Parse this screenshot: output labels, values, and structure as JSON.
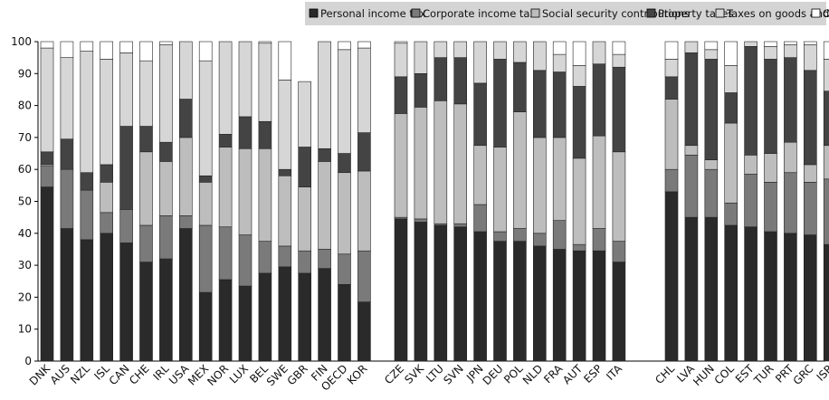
{
  "chart_data": {
    "type": "bar",
    "stacked": true,
    "ylim": [
      0,
      100
    ],
    "yticks": [
      0,
      10,
      20,
      30,
      40,
      50,
      60,
      70,
      80,
      90,
      100
    ],
    "grid": false,
    "legend_position": "top",
    "groups": [
      [
        "DNK",
        "AUS",
        "NZL",
        "ISL",
        "CAN",
        "CHE",
        "IRL",
        "USA",
        "MEX",
        "NOR",
        "LUX",
        "BEL",
        "SWE",
        "GBR",
        "FIN",
        "OECD",
        "KOR"
      ],
      [
        "CZE",
        "SVK",
        "LTU",
        "SVN",
        "JPN",
        "DEU",
        "POL",
        "NLD",
        "FRA",
        "AUT",
        "ESP",
        "ITA"
      ],
      [
        "CHL",
        "LVA",
        "HUN",
        "COL",
        "EST",
        "TUR",
        "PRT",
        "GRC",
        "ISR"
      ]
    ],
    "categories": [
      "DNK",
      "AUS",
      "NZL",
      "ISL",
      "CAN",
      "CHE",
      "IRL",
      "USA",
      "MEX",
      "NOR",
      "LUX",
      "BEL",
      "SWE",
      "GBR",
      "FIN",
      "OECD",
      "KOR",
      "CZE",
      "SVK",
      "LTU",
      "SVN",
      "JPN",
      "DEU",
      "POL",
      "NLD",
      "FRA",
      "AUT",
      "ESP",
      "ITA",
      "CHL",
      "LVA",
      "HUN",
      "COL",
      "EST",
      "TUR",
      "PRT",
      "GRC",
      "ISR"
    ],
    "series": [
      {
        "name": "Personal income tax",
        "color": "#2a2a2a",
        "values": [
          54.5,
          41.5,
          38,
          40,
          37,
          31,
          32,
          41.5,
          21.5,
          25.5,
          23.5,
          27.5,
          29.5,
          27.5,
          29,
          24,
          18.5,
          0,
          0,
          0,
          0,
          0,
          0,
          0,
          0,
          0,
          0,
          0,
          0,
          0,
          0,
          0,
          0,
          0,
          0,
          0,
          0,
          0
        ]
      },
      {
        "name": "Corporate income tax",
        "color": "#7a7a7a",
        "values": [
          6.5,
          18.5,
          15.5,
          6.5,
          10.5,
          11.5,
          13.5,
          4,
          21,
          16.5,
          16,
          10,
          6.5,
          7,
          6,
          9.5,
          16,
          0,
          0,
          0,
          0,
          0,
          0,
          0,
          0,
          0,
          0,
          0,
          0,
          0,
          0,
          0,
          0,
          0,
          0,
          0,
          0,
          0
        ]
      },
      {
        "name": "Social security contributions",
        "color": "#bdbdbd",
        "values": [
          0.5,
          0,
          0,
          9.5,
          0,
          23,
          17,
          24.5,
          13.5,
          25,
          27,
          29,
          22,
          20,
          27.5,
          25.5,
          25,
          44,
          43.5,
          42.5,
          42,
          40.5,
          37.5,
          37.5,
          36,
          35,
          34.5,
          34.5,
          31,
          53,
          45,
          45,
          42.5,
          42,
          40.5,
          40,
          39.5,
          36.5
        ]
      },
      {
        "name": "Property taxes",
        "color": "#444444",
        "values": [
          4,
          9.5,
          5.5,
          5.5,
          26,
          8,
          6,
          12,
          2,
          4,
          10,
          8.5,
          2,
          12.5,
          4,
          6,
          12,
          1,
          1,
          1,
          1,
          8.5,
          3,
          4,
          4,
          9,
          2,
          7,
          6.5,
          7,
          19.5,
          15,
          7,
          16.5,
          15.5,
          19,
          16.5,
          20.5
        ]
      },
      {
        "name": "Taxes on goods and services",
        "color": "#d6d6d6",
        "values": [
          32.5,
          25.5,
          38,
          33,
          23,
          20.5,
          30.5,
          18,
          36,
          29,
          23.5,
          24.5,
          28,
          20.5,
          33.5,
          32.5,
          26.5,
          32,
          35,
          38,
          37,
          19,
          27,
          37,
          30,
          26,
          23.5,
          29,
          26,
          22,
          32.5,
          34,
          25,
          24,
          34,
          32,
          29,
          27.5
        ]
      },
      {
        "name": "Other",
        "color": "#ffffff",
        "values": [
          2,
          5,
          3,
          5.5,
          3.5,
          6,
          1,
          0,
          6,
          0,
          0,
          0.5,
          12,
          0,
          0,
          2.5,
          2,
          0,
          0,
          0,
          0,
          0,
          0,
          0,
          0,
          4,
          7.5,
          0,
          4,
          4.5,
          0,
          1,
          7.5,
          0,
          0,
          0,
          0,
          0
        ]
      }
    ],
    "other_detail": [
      {
        "category": "CZE",
        "values": [
          44.5,
          0.5,
          32.5,
          11.5,
          10.5,
          0.5
        ]
      },
      {
        "category": "SVK",
        "values": [
          43.5,
          1,
          35,
          10.5,
          10,
          0
        ]
      },
      {
        "category": "LTU",
        "values": [
          42.5,
          0.5,
          38.5,
          13.5,
          5,
          0
        ]
      },
      {
        "category": "SVN",
        "values": [
          42,
          1,
          37.5,
          14.5,
          5,
          0
        ]
      },
      {
        "category": "JPN",
        "values": [
          40.5,
          8.5,
          18.5,
          19.5,
          13,
          0
        ]
      },
      {
        "category": "DEU",
        "values": [
          37.5,
          3,
          26.5,
          27.5,
          5.5,
          0
        ]
      },
      {
        "category": "POL",
        "values": [
          37.5,
          4,
          36.5,
          15.5,
          6.5,
          0
        ]
      },
      {
        "category": "NLD",
        "values": [
          36,
          4,
          30,
          21,
          9,
          0
        ]
      },
      {
        "category": "FRA",
        "values": [
          35,
          9,
          26,
          20.5,
          5.5,
          4
        ]
      },
      {
        "category": "AUT",
        "values": [
          34.5,
          2,
          27,
          22.5,
          6.5,
          7.5
        ]
      },
      {
        "category": "ESP",
        "values": [
          34.5,
          7,
          29,
          22.5,
          7,
          0
        ]
      },
      {
        "category": "ITA",
        "values": [
          31,
          6.5,
          28,
          26.5,
          4,
          4
        ]
      },
      {
        "category": "CHL",
        "values": [
          53,
          7,
          22,
          7,
          5.5,
          5.5
        ]
      },
      {
        "category": "LVA",
        "values": [
          45,
          19.5,
          3,
          29,
          3.5,
          0
        ]
      },
      {
        "category": "HUN",
        "values": [
          45,
          15,
          3,
          31.5,
          3,
          2.5
        ]
      },
      {
        "category": "COL",
        "values": [
          42.5,
          7,
          25,
          9.5,
          8.5,
          7.5
        ]
      },
      {
        "category": "EST",
        "values": [
          42,
          16.5,
          6,
          34,
          1.5,
          0
        ]
      },
      {
        "category": "TUR",
        "values": [
          40.5,
          15.5,
          9,
          29.5,
          4,
          1.5
        ]
      },
      {
        "category": "PRT",
        "values": [
          40,
          19,
          9.5,
          26.5,
          4,
          1
        ]
      },
      {
        "category": "GRC",
        "values": [
          39.5,
          16.5,
          5.5,
          29.5,
          8,
          1
        ]
      },
      {
        "category": "ISR",
        "values": [
          36.5,
          20.5,
          10.5,
          17,
          10,
          5.5
        ]
      }
    ]
  },
  "legend": {
    "items": [
      {
        "label": "Personal income tax",
        "color": "#2a2a2a"
      },
      {
        "label": "Corporate income tax",
        "color": "#7a7a7a"
      },
      {
        "label": "Social security contributions",
        "color": "#bdbdbd"
      },
      {
        "label": "Property taxes",
        "color": "#444444"
      },
      {
        "label": "Taxes on goods and services",
        "color": "#d6d6d6"
      },
      {
        "label": "Other",
        "color": "#ffffff"
      }
    ]
  },
  "colors": {
    "legend_background": "#d4d4d4",
    "axis": "#000000"
  }
}
